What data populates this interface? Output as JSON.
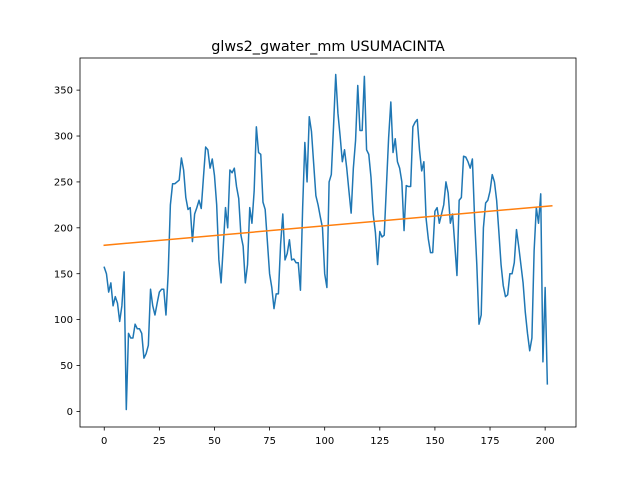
{
  "chart_data": {
    "type": "line",
    "title": "glws2_gwater_mm USUMACINTA",
    "xlabel": "",
    "ylabel": "",
    "xlim": [
      -11,
      214
    ],
    "ylim": [
      -17,
      385
    ],
    "xticks": [
      0,
      25,
      50,
      75,
      100,
      125,
      150,
      175,
      200
    ],
    "yticks": [
      0,
      50,
      100,
      150,
      200,
      250,
      300,
      350
    ],
    "grid": false,
    "legend": "none",
    "series": [
      {
        "color": "#1f77b4",
        "values": [
          157,
          150,
          130,
          140,
          115,
          125,
          118,
          98,
          115,
          152,
          2,
          85,
          80,
          80,
          95,
          90,
          90,
          85,
          58,
          63,
          72,
          133,
          115,
          105,
          118,
          130,
          133,
          133,
          105,
          150,
          225,
          248,
          248,
          250,
          252,
          276,
          263,
          233,
          220,
          222,
          185,
          215,
          222,
          230,
          221,
          255,
          288,
          285,
          265,
          275,
          257,
          225,
          165,
          140,
          180,
          222,
          200,
          263,
          260,
          265,
          245,
          232,
          192,
          180,
          140,
          160,
          222,
          205,
          240,
          310,
          282,
          280,
          228,
          220,
          185,
          150,
          135,
          112,
          128,
          128,
          182,
          215,
          165,
          172,
          187,
          165,
          166,
          162,
          162,
          132,
          222,
          293,
          250,
          321,
          305,
          270,
          235,
          225,
          212,
          200,
          150,
          135,
          250,
          258,
          310,
          367,
          325,
          300,
          272,
          285,
          265,
          240,
          216,
          265,
          295,
          355,
          306,
          306,
          365,
          285,
          280,
          255,
          215,
          195,
          160,
          196,
          190,
          192,
          245,
          298,
          337,
          282,
          297,
          272,
          265,
          250,
          197,
          246,
          245,
          245,
          310,
          315,
          318,
          285,
          262,
          272,
          210,
          188,
          173,
          173,
          218,
          222,
          205,
          215,
          225,
          250,
          238,
          205,
          215,
          182,
          148,
          230,
          233,
          278,
          277,
          272,
          265,
          275,
          210,
          160,
          95,
          105,
          200,
          227,
          230,
          240,
          258,
          250,
          230,
          196,
          160,
          137,
          125,
          127,
          150,
          150,
          162,
          198,
          180,
          160,
          140,
          108,
          85,
          66,
          80,
          175,
          222,
          205,
          237,
          54,
          135,
          30
        ]
      },
      {
        "color": "#ff7f0e",
        "x": [
          0,
          203
        ],
        "values": [
          181,
          224
        ]
      }
    ]
  }
}
